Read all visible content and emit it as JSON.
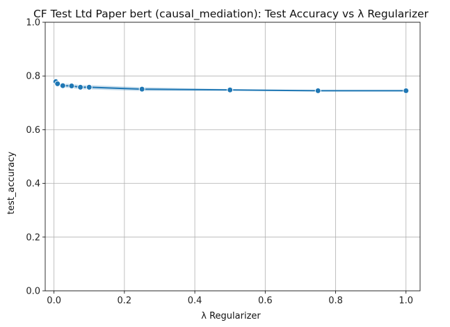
{
  "chart_data": {
    "type": "line",
    "title": "CF Test Ltd Paper bert (causal_mediation): Test Accuracy vs λ Regularizer",
    "xlabel": "λ Regularizer",
    "ylabel": "test_accuracy",
    "xlim": [
      -0.025,
      1.04
    ],
    "ylim": [
      0.0,
      1.0
    ],
    "xticks": [
      0.0,
      0.2,
      0.4,
      0.6,
      0.8,
      1.0
    ],
    "xtick_labels": [
      "0.0",
      "0.2",
      "0.4",
      "0.6",
      "0.8",
      "1.0"
    ],
    "yticks": [
      0.0,
      0.2,
      0.4,
      0.6,
      0.8,
      1.0
    ],
    "ytick_labels": [
      "0.0",
      "0.2",
      "0.4",
      "0.6",
      "0.8",
      "1.0"
    ],
    "grid": true,
    "series": [
      {
        "x": [
          0.005,
          0.01,
          0.025,
          0.05,
          0.075,
          0.1,
          0.25,
          0.5,
          0.75,
          1.0
        ],
        "values": [
          0.779,
          0.771,
          0.764,
          0.763,
          0.758,
          0.758,
          0.751,
          0.748,
          0.745,
          0.745
        ],
        "ci_low": [
          0.772,
          0.764,
          0.757,
          0.755,
          0.75,
          0.75,
          0.744,
          0.745,
          0.742,
          0.742
        ],
        "ci_high": [
          0.786,
          0.778,
          0.771,
          0.771,
          0.766,
          0.766,
          0.758,
          0.751,
          0.748,
          0.748
        ],
        "color": "#1f77b4"
      }
    ]
  }
}
